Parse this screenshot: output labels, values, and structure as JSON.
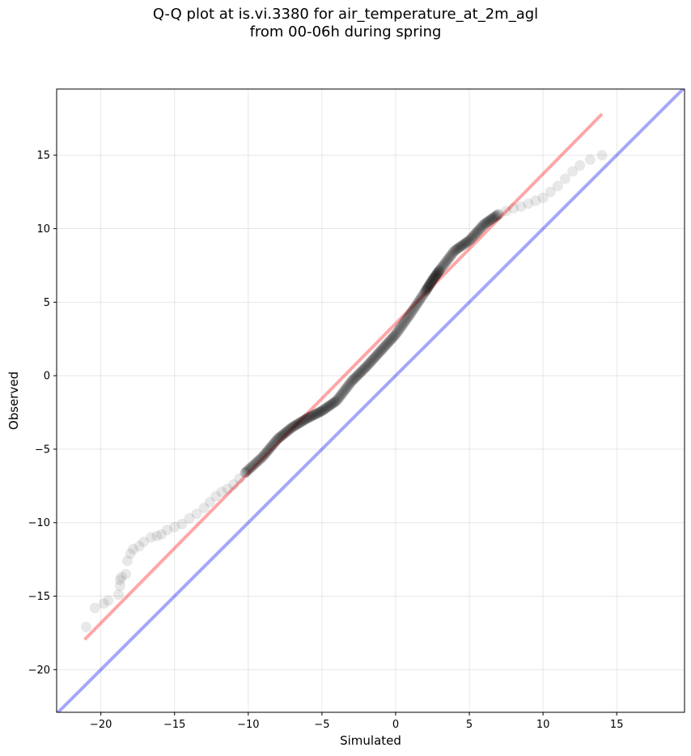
{
  "chart_data": {
    "type": "scatter",
    "title": "Q-Q plot at is.vi.3380 for air_temperature_at_2m_agl",
    "subtitle": "from 00-06h during spring",
    "xlabel": "Simulated",
    "ylabel": "Observed",
    "xlim": [
      -23,
      19.6
    ],
    "ylim": [
      -22.9,
      19.5
    ],
    "xticks": [
      -20,
      -15,
      -10,
      -5,
      0,
      5,
      10,
      15
    ],
    "yticks": [
      -20,
      -15,
      -10,
      -5,
      0,
      5,
      10,
      15
    ],
    "xtick_labels": [
      "−20",
      "−15",
      "−10",
      "−5",
      "0",
      "5",
      "10",
      "15"
    ],
    "ytick_labels": [
      "−20",
      "−15",
      "−10",
      "−5",
      "0",
      "5",
      "10",
      "15"
    ],
    "grid": true,
    "colors": {
      "points": "#000000",
      "fit_line": "#ff0000",
      "identity_line": "#0000ee"
    },
    "fit_line": {
      "x": [
        -21.1,
        14.0
      ],
      "y": [
        -17.95,
        17.8
      ]
    },
    "identity_line": {
      "x": [
        -23,
        19.6
      ],
      "y": [
        -23,
        19.6
      ]
    },
    "points_sparse": {
      "x": [
        -21.0,
        -20.4,
        -19.8,
        -19.5,
        -18.8,
        -18.7,
        -18.7,
        -18.6,
        -18.3,
        -18.2,
        -18.0,
        -17.8,
        -17.4,
        -17.1,
        -16.6,
        -16.2,
        -15.9,
        -15.5,
        -15.0,
        -14.5,
        -14.0,
        -13.5,
        -13.0,
        -12.6,
        -12.2,
        -11.8,
        -11.4,
        -11.0,
        -10.6,
        -10.2,
        7.0,
        7.5,
        8.0,
        8.5,
        9.0,
        9.5,
        10.0,
        10.5,
        11.0,
        11.5,
        12.0,
        12.5,
        13.2,
        14.0
      ],
      "y": [
        -17.1,
        -15.8,
        -15.5,
        -15.3,
        -14.9,
        -14.3,
        -13.9,
        -13.7,
        -13.5,
        -12.6,
        -12.1,
        -11.8,
        -11.6,
        -11.3,
        -11.0,
        -10.9,
        -10.8,
        -10.5,
        -10.3,
        -10.1,
        -9.7,
        -9.4,
        -9.0,
        -8.6,
        -8.2,
        -7.9,
        -7.7,
        -7.4,
        -7.0,
        -6.6,
        11.0,
        11.2,
        11.4,
        11.5,
        11.7,
        11.9,
        12.1,
        12.5,
        12.9,
        13.4,
        13.9,
        14.3,
        14.7,
        15.0
      ]
    },
    "points_dense_path": {
      "x": [
        -10.2,
        -9.0,
        -8.0,
        -7.0,
        -6.0,
        -5.0,
        -4.0,
        -3.0,
        -2.0,
        -1.0,
        0.0,
        1.0,
        2.0,
        2.5,
        3.0,
        4.0,
        5.0,
        6.0,
        7.0
      ],
      "y": [
        -6.6,
        -5.5,
        -4.3,
        -3.5,
        -2.9,
        -2.4,
        -1.7,
        -0.4,
        0.6,
        1.7,
        2.8,
        4.2,
        5.7,
        6.5,
        7.2,
        8.5,
        9.2,
        10.3,
        11.0
      ]
    }
  }
}
